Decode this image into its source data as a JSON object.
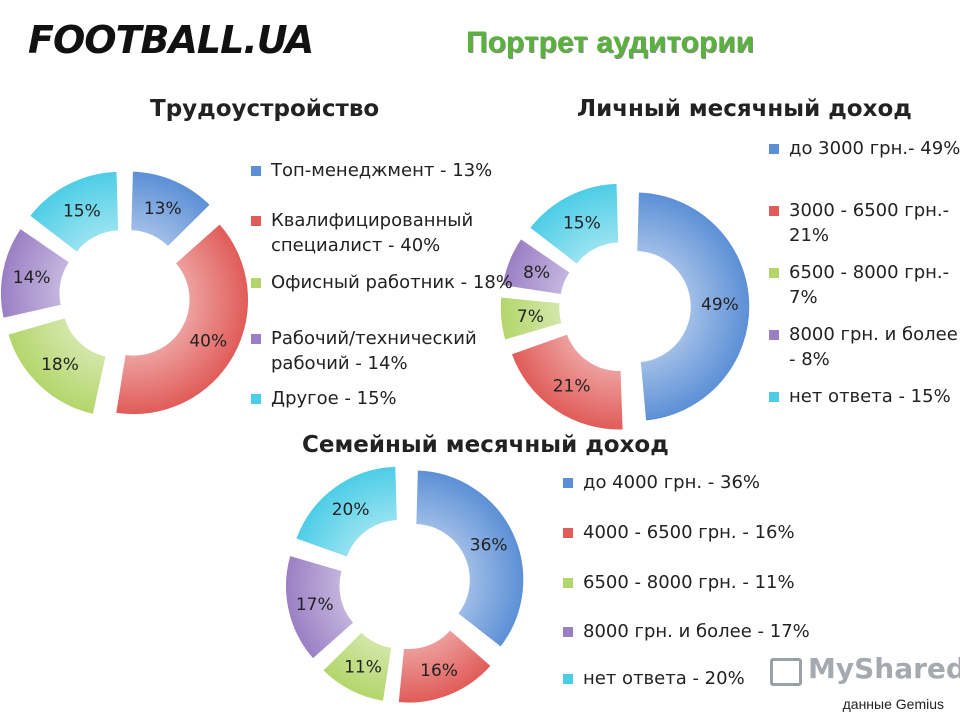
{
  "header": {
    "logo": "FOOTBALL.UA",
    "title": "Портрет аудитории"
  },
  "chart_data": [
    {
      "type": "pie",
      "title": "Трудоустройство",
      "slices": [
        {
          "label": "Топ-менеджмент - 13%",
          "value": 13,
          "data_label": "13%",
          "color": "#5b8fd6"
        },
        {
          "label": "Квалифицированный специалист - 40%",
          "value": 40,
          "data_label": "40%",
          "color": "#e05b58"
        },
        {
          "label": "Офисный работник - 18%",
          "value": 18,
          "data_label": "18%",
          "color": "#b3d66b"
        },
        {
          "label": "Рабочий/технический рабочий - 14%",
          "value": 14,
          "data_label": "14%",
          "color": "#9a7fc4"
        },
        {
          "label": "Другое - 15%",
          "value": 15,
          "data_label": "15%",
          "color": "#4ccde6"
        }
      ],
      "legend_position": "right"
    },
    {
      "type": "pie",
      "title": "Личный месячный доход",
      "slices": [
        {
          "label": "до 3000 грн.- 49%",
          "value": 49,
          "data_label": "49%",
          "color": "#5b8fd6"
        },
        {
          "label": "3000 - 6500 грн.- 21%",
          "value": 21,
          "data_label": "21%",
          "color": "#e05b58"
        },
        {
          "label": "6500 - 8000 грн.- 7%",
          "value": 7,
          "data_label": "7%",
          "color": "#b3d66b"
        },
        {
          "label": "8000 грн. и более - 8%",
          "value": 8,
          "data_label": "8%",
          "color": "#9a7fc4"
        },
        {
          "label": "нет ответа - 15%",
          "value": 15,
          "data_label": "15%",
          "color": "#4ccde6"
        }
      ],
      "legend_position": "right"
    },
    {
      "type": "pie",
      "title": "Семейный месячный доход",
      "slices": [
        {
          "label": "до 4000 грн. - 36%",
          "value": 36,
          "data_label": "36%",
          "color": "#5b8fd6"
        },
        {
          "label": "4000 - 6500 грн. - 16%",
          "value": 16,
          "data_label": "16%",
          "color": "#e05b58"
        },
        {
          "label": "6500 - 8000 грн. - 11%",
          "value": 11,
          "data_label": "11%",
          "color": "#b3d66b"
        },
        {
          "label": "8000 грн. и более - 17%",
          "value": 17,
          "data_label": "17%",
          "color": "#9a7fc4"
        },
        {
          "label": "нет ответа - 20%",
          "value": 20,
          "data_label": "20%",
          "color": "#4ccde6"
        }
      ],
      "legend_position": "right"
    }
  ],
  "watermark": "MyShared",
  "source_note": "данные Gemius"
}
